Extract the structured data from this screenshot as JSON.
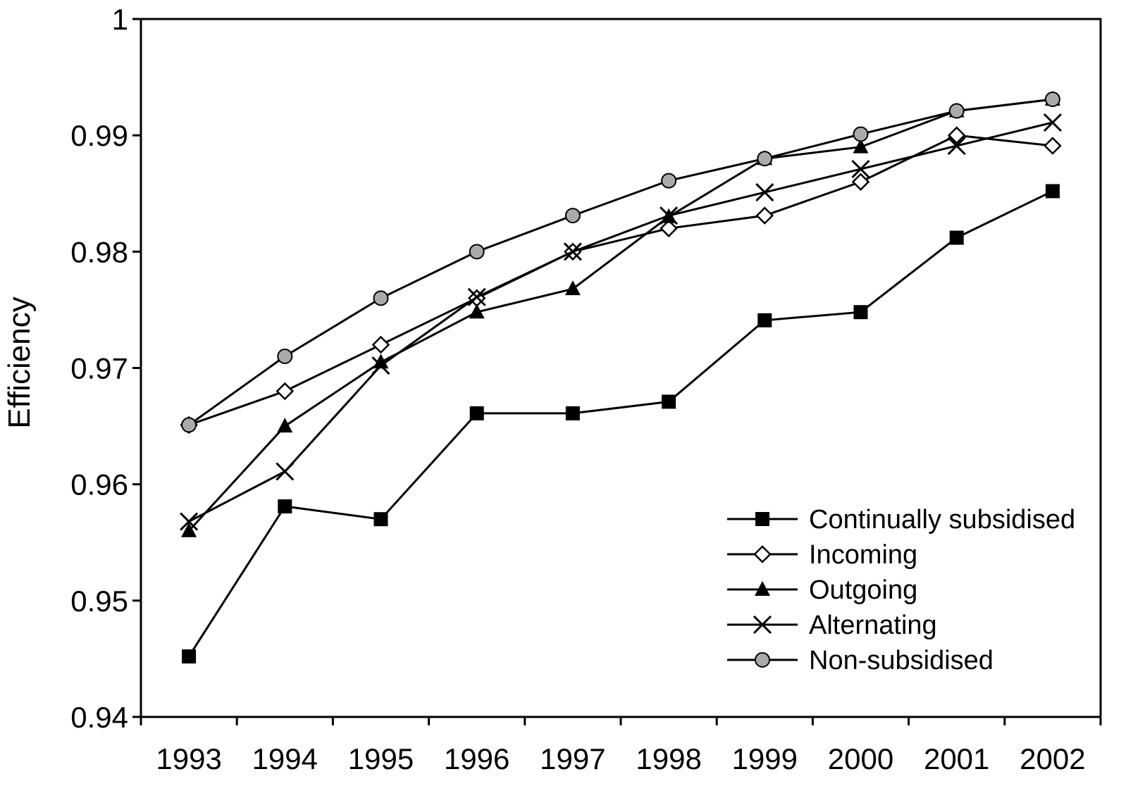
{
  "chart_data": {
    "type": "line",
    "title": "",
    "xlabel": "",
    "ylabel": "Efficiency",
    "categories": [
      "1993",
      "1994",
      "1995",
      "1996",
      "1997",
      "1998",
      "1999",
      "2000",
      "2001",
      "2002"
    ],
    "ylim": [
      0.94,
      1
    ],
    "yticks": [
      0.94,
      0.95,
      0.96,
      0.97,
      0.98,
      0.99,
      1
    ],
    "ytick_labels": [
      "0.94",
      "0.95",
      "0.96",
      "0.97",
      "0.98",
      "0.99",
      "1"
    ],
    "grid": false,
    "legend_position": "bottom-right",
    "series": [
      {
        "name": "Continually subsidised",
        "marker": "square-filled",
        "color": "#000000",
        "values": [
          0.9452,
          0.9581,
          0.957,
          0.9661,
          0.9661,
          0.9671,
          0.9741,
          0.9748,
          0.9812,
          0.9852
        ]
      },
      {
        "name": "Incoming",
        "marker": "diamond-open",
        "color": "#000000",
        "values": [
          0.9651,
          0.968,
          0.972,
          0.976,
          0.98,
          0.982,
          0.9831,
          0.986,
          0.99,
          0.9891
        ]
      },
      {
        "name": "Outgoing",
        "marker": "triangle-filled",
        "color": "#000000",
        "values": [
          0.956,
          0.965,
          0.9705,
          0.9748,
          0.9768,
          0.983,
          0.988,
          0.989,
          0.9921,
          0.9931
        ]
      },
      {
        "name": "Alternating",
        "marker": "x",
        "color": "#000000",
        "values": [
          0.9568,
          0.9611,
          0.9702,
          0.9761,
          0.98,
          0.9831,
          0.9851,
          0.9871,
          0.9891,
          0.9911
        ]
      },
      {
        "name": "Non-subsidised",
        "marker": "circle-grey",
        "color": "#aaaaaa",
        "values": [
          0.9651,
          0.971,
          0.976,
          0.98,
          0.9831,
          0.9861,
          0.988,
          0.9901,
          0.9921,
          0.9931
        ]
      }
    ]
  }
}
